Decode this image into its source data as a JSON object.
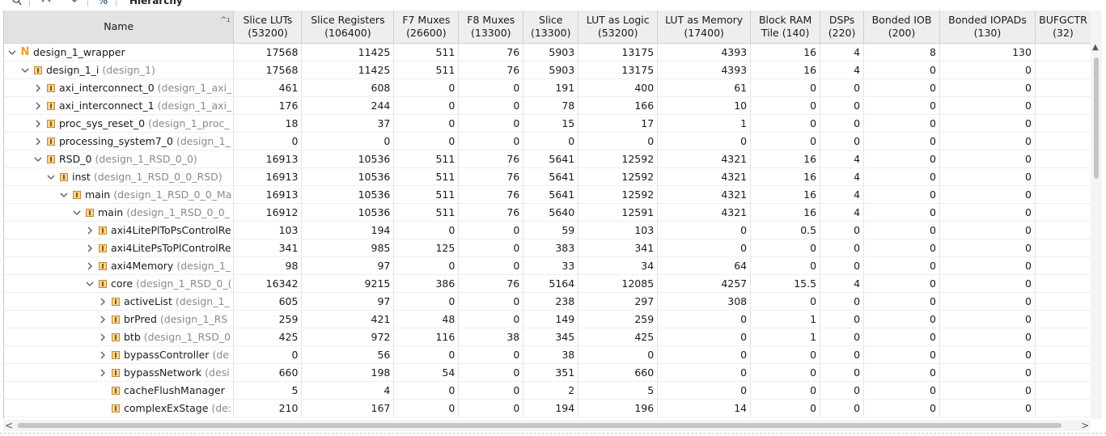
{
  "toolbar": {
    "title": "Hierarchy",
    "buttons": [
      "search-icon",
      "collapse-all-icon",
      "expand-all-icon",
      "percent-icon"
    ]
  },
  "table": {
    "columns": [
      {
        "key": "name",
        "label": "Name",
        "sub": ""
      },
      {
        "key": "slice_luts",
        "label": "Slice LUTs",
        "sub": "(53200)"
      },
      {
        "key": "slice_registers",
        "label": "Slice Registers",
        "sub": "(106400)"
      },
      {
        "key": "f7",
        "label": "F7 Muxes",
        "sub": "(26600)"
      },
      {
        "key": "f8",
        "label": "F8 Muxes",
        "sub": "(13300)"
      },
      {
        "key": "slice",
        "label": "Slice",
        "sub": "(13300)"
      },
      {
        "key": "lut_logic",
        "label": "LUT as Logic",
        "sub": "(53200)"
      },
      {
        "key": "lut_mem",
        "label": "LUT as Memory",
        "sub": "(17400)"
      },
      {
        "key": "bram",
        "label": "Block RAM",
        "sub": "Tile (140)"
      },
      {
        "key": "dsps",
        "label": "DSPs",
        "sub": "(220)"
      },
      {
        "key": "bonded_iob",
        "label": "Bonded IOB",
        "sub": "(200)"
      },
      {
        "key": "bonded_iopads",
        "label": "Bonded IOPADs",
        "sub": "(130)"
      },
      {
        "key": "bufgctrl",
        "label": "BUFGCTR",
        "sub": "(32)"
      }
    ],
    "sort_indicator": "^",
    "sort_index": "1",
    "rows": [
      {
        "indent": 0,
        "expand": "expanded",
        "icon": "top",
        "name": "design_1_wrapper",
        "def": "",
        "values": [
          "17568",
          "11425",
          "511",
          "76",
          "5903",
          "13175",
          "4393",
          "16",
          "4",
          "8",
          "130",
          ""
        ]
      },
      {
        "indent": 1,
        "expand": "expanded",
        "icon": "inst",
        "name": "design_1_i",
        "def": "(design_1)",
        "values": [
          "17568",
          "11425",
          "511",
          "76",
          "5903",
          "13175",
          "4393",
          "16",
          "4",
          "0",
          "0",
          ""
        ]
      },
      {
        "indent": 2,
        "expand": "collapsed",
        "icon": "inst",
        "name": "axi_interconnect_0",
        "def": "(design_1_axi_",
        "values": [
          "461",
          "608",
          "0",
          "0",
          "191",
          "400",
          "61",
          "0",
          "0",
          "0",
          "0",
          ""
        ]
      },
      {
        "indent": 2,
        "expand": "collapsed",
        "icon": "inst",
        "name": "axi_interconnect_1",
        "def": "(design_1_axi_",
        "values": [
          "176",
          "244",
          "0",
          "0",
          "78",
          "166",
          "10",
          "0",
          "0",
          "0",
          "0",
          ""
        ]
      },
      {
        "indent": 2,
        "expand": "collapsed",
        "icon": "inst",
        "name": "proc_sys_reset_0",
        "def": "(design_1_proc_",
        "values": [
          "18",
          "37",
          "0",
          "0",
          "15",
          "17",
          "1",
          "0",
          "0",
          "0",
          "0",
          ""
        ]
      },
      {
        "indent": 2,
        "expand": "collapsed",
        "icon": "inst",
        "name": "processing_system7_0",
        "def": "(design_1_",
        "values": [
          "0",
          "0",
          "0",
          "0",
          "0",
          "0",
          "0",
          "0",
          "0",
          "0",
          "0",
          ""
        ]
      },
      {
        "indent": 2,
        "expand": "expanded",
        "icon": "inst",
        "name": "RSD_0",
        "def": "(design_1_RSD_0_0)",
        "values": [
          "16913",
          "10536",
          "511",
          "76",
          "5641",
          "12592",
          "4321",
          "16",
          "4",
          "0",
          "0",
          ""
        ]
      },
      {
        "indent": 3,
        "expand": "expanded",
        "icon": "inst",
        "name": "inst",
        "def": "(design_1_RSD_0_0_RSD)",
        "values": [
          "16913",
          "10536",
          "511",
          "76",
          "5641",
          "12592",
          "4321",
          "16",
          "4",
          "0",
          "0",
          ""
        ]
      },
      {
        "indent": 4,
        "expand": "expanded",
        "icon": "inst",
        "name": "main",
        "def": "(design_1_RSD_0_0_Ma",
        "values": [
          "16913",
          "10536",
          "511",
          "76",
          "5641",
          "12592",
          "4321",
          "16",
          "4",
          "0",
          "0",
          ""
        ]
      },
      {
        "indent": 5,
        "expand": "expanded",
        "icon": "inst",
        "name": "main",
        "def": "(design_1_RSD_0_0_",
        "values": [
          "16912",
          "10536",
          "511",
          "76",
          "5640",
          "12591",
          "4321",
          "16",
          "4",
          "0",
          "0",
          ""
        ]
      },
      {
        "indent": 6,
        "expand": "collapsed",
        "icon": "inst",
        "name": "axi4LitePlToPsControlRe",
        "def": "",
        "values": [
          "103",
          "194",
          "0",
          "0",
          "59",
          "103",
          "0",
          "0.5",
          "0",
          "0",
          "0",
          ""
        ]
      },
      {
        "indent": 6,
        "expand": "collapsed",
        "icon": "inst",
        "name": "axi4LitePsToPlControlRe",
        "def": "",
        "values": [
          "341",
          "985",
          "125",
          "0",
          "383",
          "341",
          "0",
          "0",
          "0",
          "0",
          "0",
          ""
        ]
      },
      {
        "indent": 6,
        "expand": "collapsed",
        "icon": "inst",
        "name": "axi4Memory",
        "def": "(design_1_",
        "values": [
          "98",
          "97",
          "0",
          "0",
          "33",
          "34",
          "64",
          "0",
          "0",
          "0",
          "0",
          ""
        ]
      },
      {
        "indent": 6,
        "expand": "expanded",
        "icon": "inst",
        "name": "core",
        "def": "(design_1_RSD_0_(",
        "values": [
          "16342",
          "9215",
          "386",
          "76",
          "5164",
          "12085",
          "4257",
          "15.5",
          "4",
          "0",
          "0",
          ""
        ]
      },
      {
        "indent": 7,
        "expand": "collapsed",
        "icon": "inst",
        "name": "activeList",
        "def": "(design_1_",
        "values": [
          "605",
          "97",
          "0",
          "0",
          "238",
          "297",
          "308",
          "0",
          "0",
          "0",
          "0",
          ""
        ]
      },
      {
        "indent": 7,
        "expand": "collapsed",
        "icon": "inst",
        "name": "brPred",
        "def": "(design_1_RS",
        "values": [
          "259",
          "421",
          "48",
          "0",
          "149",
          "259",
          "0",
          "1",
          "0",
          "0",
          "0",
          ""
        ]
      },
      {
        "indent": 7,
        "expand": "collapsed",
        "icon": "inst",
        "name": "btb",
        "def": "(design_1_RSD_0",
        "values": [
          "425",
          "972",
          "116",
          "38",
          "345",
          "425",
          "0",
          "1",
          "0",
          "0",
          "0",
          ""
        ]
      },
      {
        "indent": 7,
        "expand": "collapsed",
        "icon": "inst",
        "name": "bypassController",
        "def": "(de",
        "values": [
          "0",
          "56",
          "0",
          "0",
          "38",
          "0",
          "0",
          "0",
          "0",
          "0",
          "0",
          ""
        ]
      },
      {
        "indent": 7,
        "expand": "collapsed",
        "icon": "inst",
        "name": "bypassNetwork",
        "def": "(desi",
        "values": [
          "660",
          "198",
          "54",
          "0",
          "351",
          "660",
          "0",
          "0",
          "0",
          "0",
          "0",
          ""
        ]
      },
      {
        "indent": 7,
        "expand": "none",
        "icon": "inst",
        "name": "cacheFlushManager",
        "def": "",
        "values": [
          "5",
          "4",
          "0",
          "0",
          "2",
          "5",
          "0",
          "0",
          "0",
          "0",
          "0",
          ""
        ]
      },
      {
        "indent": 7,
        "expand": "none",
        "icon": "inst",
        "name": "complexExStage",
        "def": "(de:",
        "values": [
          "210",
          "167",
          "0",
          "0",
          "194",
          "196",
          "14",
          "0",
          "0",
          "0",
          "0",
          ""
        ]
      }
    ]
  }
}
